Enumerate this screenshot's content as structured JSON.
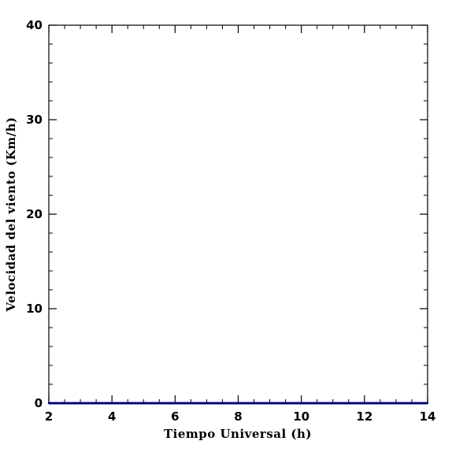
{
  "chart_data": {
    "type": "line",
    "title": "",
    "xlabel": "Tiempo Universal (h)",
    "ylabel": "Velocidad del viento (Km/h)",
    "xlim": [
      2,
      14
    ],
    "ylim": [
      0,
      40
    ],
    "x_ticks": [
      2,
      4,
      6,
      8,
      10,
      12,
      14
    ],
    "y_ticks": [
      0,
      10,
      20,
      30,
      40
    ],
    "x_minor_step": 0.5,
    "y_minor_step": 2,
    "grid": false,
    "legend": "none",
    "series": [
      {
        "color": "#1010d0",
        "x": [
          2,
          3,
          4,
          5,
          6,
          7,
          8,
          9,
          10,
          11,
          12,
          13,
          14
        ],
        "y": [
          0,
          0,
          0,
          0,
          0,
          0,
          0,
          0,
          0,
          0,
          0,
          0,
          0
        ]
      }
    ]
  }
}
